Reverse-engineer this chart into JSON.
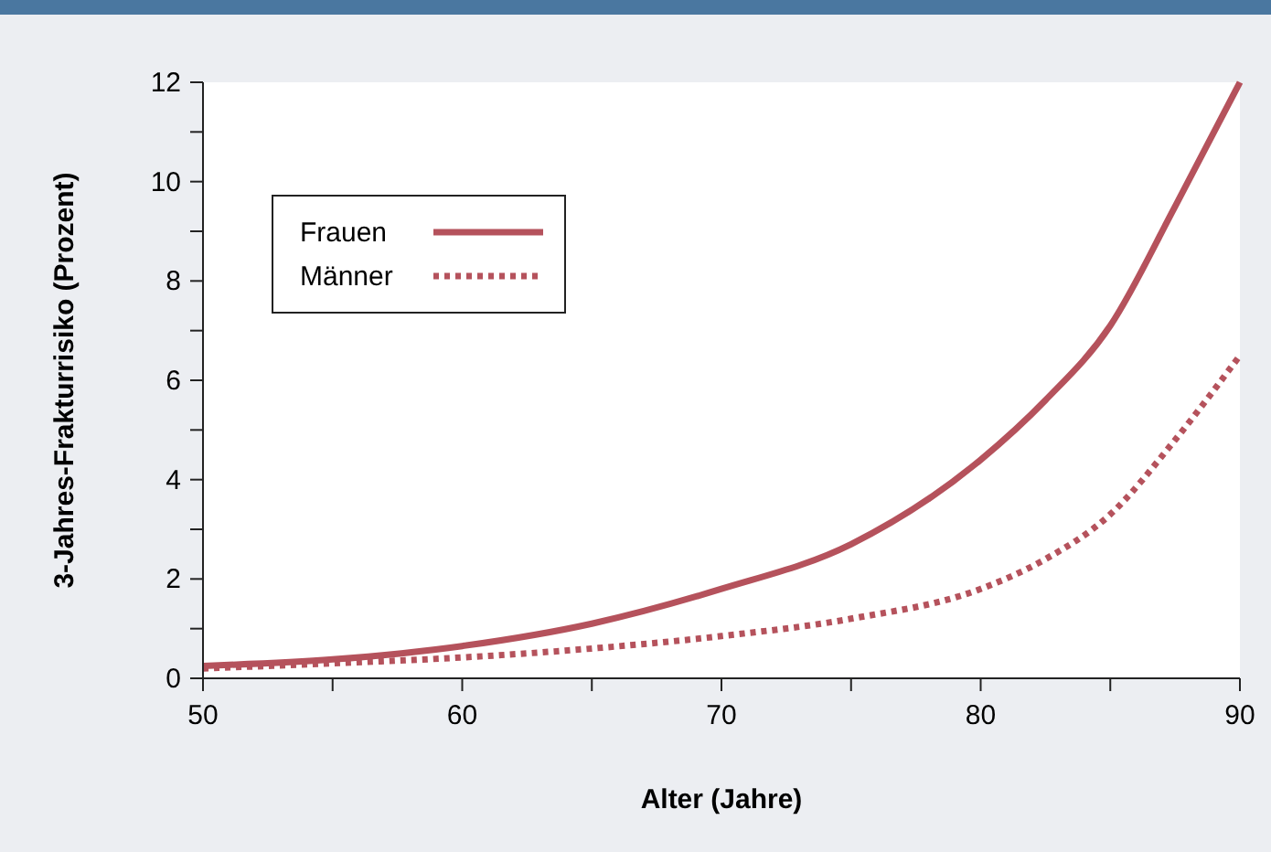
{
  "chart_data": {
    "type": "line",
    "xlabel": "Alter (Jahre)",
    "ylabel": "3-Jahres-Frakturrisiko (Prozent)",
    "x": [
      50,
      55,
      60,
      65,
      70,
      75,
      80,
      82.5,
      85,
      87.5,
      90
    ],
    "series": [
      {
        "name": "Frauen",
        "color": "#b5525c",
        "line_style": "solid",
        "values": [
          0.25,
          0.38,
          0.65,
          1.1,
          1.8,
          2.7,
          4.4,
          5.6,
          7.1,
          9.5,
          12
        ]
      },
      {
        "name": "Männer",
        "color": "#b5525c",
        "line_style": "dotted",
        "values": [
          0.2,
          0.3,
          0.42,
          0.6,
          0.85,
          1.2,
          1.8,
          2.4,
          3.3,
          4.8,
          6.5
        ]
      }
    ],
    "xlim": [
      50,
      90
    ],
    "xticks": [
      50,
      {
        "value": 55,
        "label": null
      },
      60,
      {
        "value": 65,
        "label": null
      },
      70,
      {
        "value": 75,
        "label": null
      },
      80,
      {
        "value": 85,
        "label": null
      },
      90
    ],
    "ylim": [
      0,
      12
    ],
    "yticks": [
      0,
      {
        "value": 1,
        "label": null
      },
      2,
      {
        "value": 3,
        "label": null
      },
      4,
      {
        "value": 5,
        "label": null
      },
      6,
      {
        "value": 7,
        "label": null
      },
      8,
      {
        "value": 9,
        "label": null
      },
      10,
      {
        "value": 11,
        "label": null
      },
      12
    ],
    "grid": false,
    "legend": "top left",
    "marker": "none"
  }
}
